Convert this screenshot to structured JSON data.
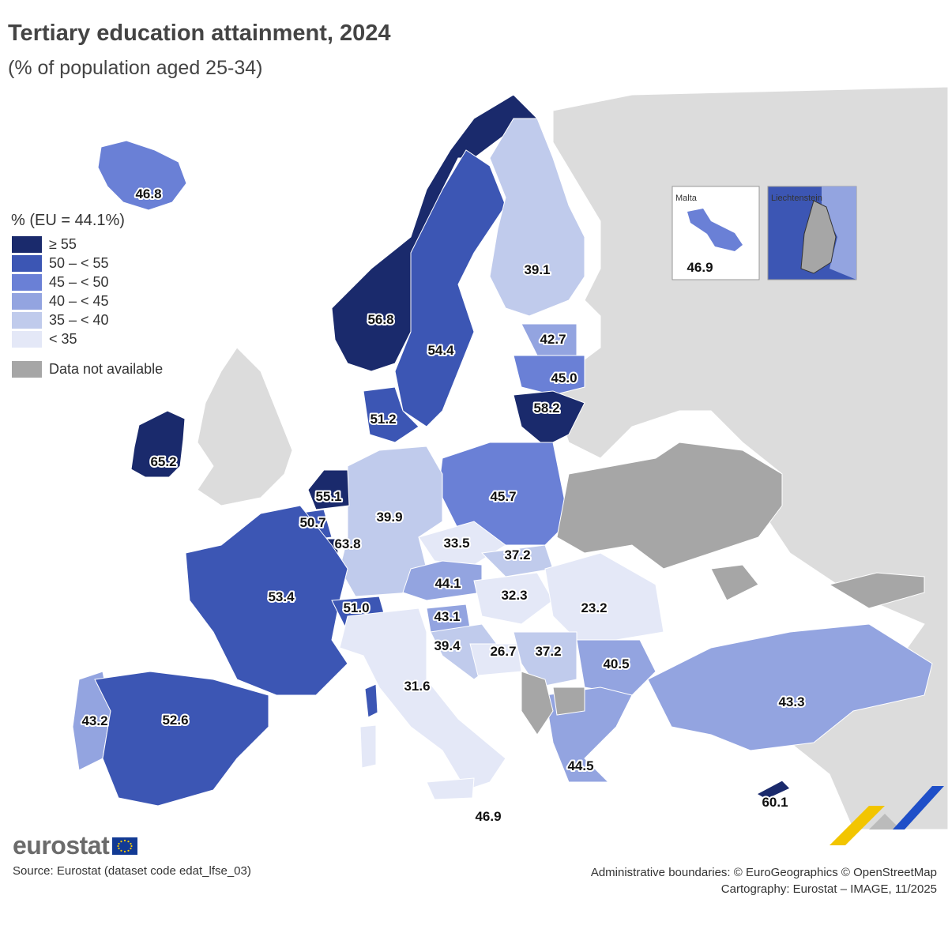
{
  "title": "Tertiary education attainment, 2024",
  "subtitle": "(% of population aged 25-34)",
  "legend": {
    "title": "% (EU = 44.1%)",
    "classes": [
      {
        "label": "≥ 55",
        "color": "#1a2a6c"
      },
      {
        "label": "50 – < 55",
        "color": "#3c56b4"
      },
      {
        "label": "45 – < 50",
        "color": "#6a80d6"
      },
      {
        "label": "40 – < 45",
        "color": "#93a4e0"
      },
      {
        "label": "35 – < 40",
        "color": "#c0cbec"
      },
      {
        "label": "< 35",
        "color": "#e4e8f7"
      }
    ],
    "na_label": "Data not available",
    "na_color": "#a6a6a6",
    "non_eu_color": "#dcdcdc",
    "sea_color": "#ffffff"
  },
  "chart_data": {
    "type": "choropleth",
    "unit": "%",
    "eu_average": 44.1,
    "regions": [
      {
        "value": 46.8
      },
      {
        "value": 65.2
      },
      {
        "value": 56.8
      },
      {
        "value": 54.4
      },
      {
        "value": 39.1
      },
      {
        "value": 42.7
      },
      {
        "value": 45.0
      },
      {
        "value": 58.2
      },
      {
        "value": 51.2
      },
      {
        "value": 45.7
      },
      {
        "value": 55.1
      },
      {
        "value": 50.7
      },
      {
        "value": 63.8
      },
      {
        "value": 39.9
      },
      {
        "value": 33.5
      },
      {
        "value": 37.2
      },
      {
        "value": 44.1
      },
      {
        "value": 32.3
      },
      {
        "value": 23.2
      },
      {
        "value": 53.4
      },
      {
        "value": 51.0
      },
      {
        "value": 43.1
      },
      {
        "value": 39.4
      },
      {
        "value": 26.7
      },
      {
        "value": 37.2
      },
      {
        "value": 40.5
      },
      {
        "value": 31.6
      },
      {
        "value": 43.2
      },
      {
        "value": 52.6
      },
      {
        "value": 43.3
      },
      {
        "value": 44.5
      },
      {
        "value": 60.1
      },
      {
        "value": 46.9
      }
    ]
  },
  "insets": {
    "malta": {
      "name": "Malta",
      "value": "46.9"
    },
    "liechtenstein": {
      "name": "Liechtenstein"
    }
  },
  "logo": {
    "text": "eurostat"
  },
  "source": "Source: Eurostat (dataset code edat_lfse_03)",
  "credits": {
    "line1": "Administrative boundaries: © EuroGeographics © OpenStreetMap",
    "line2": "Cartography: Eurostat – IMAGE, 11/2025"
  }
}
